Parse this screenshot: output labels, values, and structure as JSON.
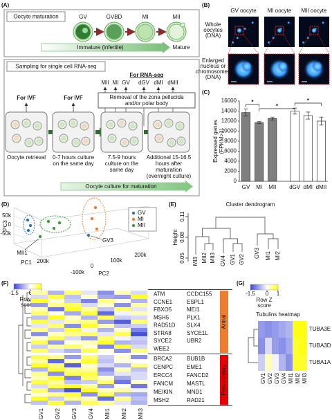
{
  "panel_labels": [
    "(A)",
    "(B)",
    "(C)",
    "(D)",
    "(E)",
    "(F)",
    "(G)"
  ],
  "a": {
    "maturation_title": "Oocyte maturation",
    "stages": [
      "GV",
      "GVBD",
      "MI",
      "MII"
    ],
    "immature": "Immature (infertile)",
    "mature": "Mature",
    "sampling_title": "Sampling for single cell RNA-seq",
    "for_rna_seq": "For RNA-seq",
    "top_labels": [
      "MII",
      "MI",
      "GV",
      "dGV",
      "dMI",
      "dMII"
    ],
    "removal": [
      "Removal of the zona pellucida",
      "and/or polar body"
    ],
    "for_ivf": [
      "For IVF",
      "For IVF"
    ],
    "steps": [
      [
        "Oocyte retrieval"
      ],
      [
        "0-7 hours culture",
        "on the same day"
      ],
      [
        "7.5-9 hours",
        "culture on the",
        "same day"
      ],
      [
        "Additional 15-16.5",
        "hours after",
        "maturation",
        "(overnight culture)"
      ]
    ],
    "culture": "Oocyte culture for maturation"
  },
  "b": {
    "columns": [
      "GV oocyte",
      "MI oocyte",
      "MII oocyte"
    ],
    "rows": [
      [
        "Whole",
        "oocytes",
        "(DNA)"
      ],
      [
        "Enlarged",
        "nucleus or",
        "chromosomes",
        "(DNA)"
      ]
    ]
  },
  "d": {
    "legend": [
      {
        "name": "GV",
        "color": "#2e75b6"
      },
      {
        "name": "MI",
        "color": "#ed7d31"
      },
      {
        "name": "MII",
        "color": "#3a9c3a"
      }
    ],
    "axis_labels": {
      "pc1": "PC1",
      "pc2": "PC2",
      "pc3": "PC3"
    },
    "pc3_ticks": [
      {
        "value": 50000,
        "label": "50k"
      },
      0,
      {
        "value": -50000,
        "label": "-50k"
      }
    ],
    "pc1_ticks": [
      {
        "value": 200000,
        "label": "200k"
      },
      {
        "value": -100000,
        "label": "-100k"
      }
    ],
    "pc2_ticks": [
      0,
      {
        "value": 100000,
        "label": "100k"
      },
      {
        "value": 200000,
        "label": "200k"
      }
    ],
    "annotations": [
      "MII1",
      "GV3"
    ]
  },
  "e": {
    "title": "Cluster dendrogram",
    "y_label": "Height",
    "ylim": [
      0.045,
      0.115
    ],
    "yticks": [
      0.05,
      0.08,
      0.11
    ],
    "leaves": [
      "MI3",
      "MII2",
      "MII3",
      "GV4",
      "GV1",
      "GV2",
      "GV3",
      "MI1",
      "MI2"
    ]
  },
  "chart_data": [
    {
      "type": "bar",
      "y_label": [
        "Expressed genes",
        "(FPKM>1)"
      ],
      "categories": [
        "GV",
        "MI",
        "MII",
        "dGV",
        "dMI",
        "dMII"
      ],
      "values": [
        13700,
        11700,
        12500,
        14000,
        13100,
        12000
      ],
      "errors": [
        700,
        200,
        300,
        600,
        700,
        800
      ],
      "colors": [
        "#7f7f7f",
        "#7f7f7f",
        "#7f7f7f",
        "#ffffff",
        "#ffffff",
        "#ffffff"
      ],
      "ylim": [
        0,
        16000
      ],
      "yticks": [
        0,
        2000,
        4000,
        6000,
        8000,
        10000,
        12000,
        14000,
        16000
      ],
      "annotations": [
        "*",
        "*",
        "*"
      ]
    },
    {
      "type": "heatmap",
      "colorbar_ticks": [
        -1.5,
        0,
        1
      ],
      "colorbar_label": [
        "Row Z",
        "score"
      ],
      "colormap": [
        "#3c46d8",
        "#ffffff",
        "#ffff14"
      ],
      "columns": [
        "GV1",
        "GV2",
        "GV3",
        "GV4",
        "MII1",
        "MII2",
        "MII3"
      ],
      "groups": [
        {
          "name": "Antral",
          "color": "#ed7d31",
          "genes": [
            "ATM",
            "CCNE1",
            "FBXO5",
            "MSH5",
            "RAD51D",
            "STRA8",
            "SYCE2",
            "WEE2",
            "CCDC155",
            "ESPL1",
            "MEI1",
            "PLK1",
            "SLX4",
            "SYCE1L",
            "UBR2"
          ],
          "values": [
            [
              0.4,
              -0.6,
              0.6,
              -0.2,
              -0.9,
              0.3,
              -0.3
            ],
            [
              -0.3,
              0.8,
              -0.5,
              0.2,
              -0.7,
              -0.8,
              0.9
            ],
            [
              0.9,
              0.2,
              -0.4,
              -1.0,
              0.5,
              0.1,
              -0.6
            ],
            [
              -0.8,
              0.5,
              0.7,
              -0.3,
              0.2,
              -0.9,
              0.4
            ],
            [
              0.3,
              -1.1,
              0.9,
              0.4,
              -0.5,
              0.6,
              -0.2
            ],
            [
              0.6,
              0.1,
              -0.7,
              0.8,
              -1.2,
              -0.1,
              0.3
            ],
            [
              -0.5,
              0.9,
              0.2,
              -0.6,
              0.7,
              -0.4,
              -0.3
            ],
            [
              0.8,
              -0.2,
              0.4,
              0.5,
              -0.8,
              -1.3,
              0.6
            ],
            [
              -0.2,
              0.6,
              -0.9,
              0.9,
              0.3,
              -0.5,
              -0.4
            ],
            [
              0.5,
              -0.4,
              0.8,
              -0.1,
              -0.6,
              0.2,
              -1.0
            ],
            [
              -0.9,
              0.3,
              0.5,
              0.6,
              -0.2,
              0.7,
              -1.4
            ],
            [
              0.2,
              0.7,
              -0.3,
              -0.8,
              0.6,
              -0.1,
              -0.4
            ],
            [
              0.7,
              -0.8,
              0.1,
              0.3,
              0.9,
              -0.6,
              -0.5
            ],
            [
              -0.4,
              0.4,
              0.6,
              0.2,
              -1.0,
              0.8,
              -0.3
            ],
            [
              0.6,
              -0.3,
              -0.6,
              0.7,
              0.1,
              -0.9,
              0.5
            ]
          ]
        },
        {
          "name": "Preovulatory",
          "color": "#e60000",
          "genes": [
            "BRCA2",
            "CENPC",
            "ERCC4",
            "FANCM",
            "MEIKIN",
            "MSH2",
            "BUB1B",
            "EME1",
            "FANCD2",
            "MASTL",
            "MND1",
            "RAD21"
          ],
          "values": [
            [
              0.7,
              0.5,
              -0.8,
              0.6,
              -0.4,
              0.2,
              -0.9
            ],
            [
              0.4,
              -1.2,
              0.3,
              0.9,
              -0.5,
              0.1,
              0.0
            ],
            [
              0.9,
              0.6,
              -1.3,
              0.2,
              -0.3,
              -0.6,
              0.5
            ],
            [
              -0.6,
              0.8,
              0.5,
              0.4,
              -0.9,
              0.3,
              -0.5
            ],
            [
              0.5,
              -0.9,
              0.7,
              0.8,
              -0.6,
              -0.2,
              -0.3
            ],
            [
              0.3,
              0.9,
              -1.0,
              0.6,
              0.2,
              -0.7,
              -0.3
            ],
            [
              0.8,
              0.4,
              -0.5,
              -0.4,
              0.6,
              -1.1,
              0.2
            ],
            [
              -0.3,
              0.7,
              0.9,
              0.5,
              -0.8,
              0.1,
              -1.1
            ],
            [
              0.6,
              -0.7,
              -1.4,
              0.9,
              0.3,
              0.4,
              -0.1
            ],
            [
              0.2,
              0.5,
              0.8,
              -0.9,
              0.7,
              -0.6,
              -0.7
            ],
            [
              0.9,
              -0.4,
              0.4,
              0.3,
              -1.2,
              0.5,
              -0.5
            ],
            [
              -0.5,
              0.8,
              -0.6,
              0.7,
              0.4,
              -0.2,
              -0.6
            ]
          ]
        }
      ]
    },
    {
      "type": "heatmap",
      "title": "Tubulins heatmap",
      "colorbar_ticks": [
        -1.5,
        0,
        1
      ],
      "colorbar_label": [
        "Row Z",
        "score"
      ],
      "colormap": [
        "#3c46d8",
        "#ffffff",
        "#ffff14"
      ],
      "columns": [
        "GV1",
        "GV2",
        "GV3",
        "GV4",
        "MII1",
        "MII2",
        "MII3"
      ],
      "rows": [
        "TUBA3E",
        "TUBA3D",
        "TUBA1A"
      ],
      "values": [
        [
          -0.8,
          -0.9,
          -0.8,
          -0.7,
          -0.6,
          1.0,
          1.0
        ],
        [
          -0.9,
          -0.3,
          -0.8,
          -0.9,
          -0.7,
          0.9,
          1.0
        ],
        [
          -0.4,
          0.3,
          -0.1,
          -0.6,
          -0.9,
          0.9,
          0.9
        ]
      ]
    }
  ]
}
